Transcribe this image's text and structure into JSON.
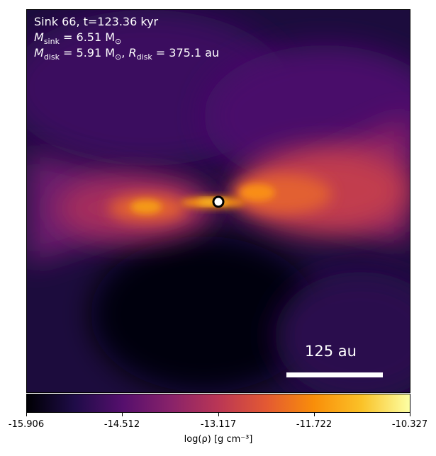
{
  "annotation": {
    "line1": "Sink 66, t=123.36 kyr",
    "m_sink_label": "M",
    "m_sink_sub": "sink",
    "m_sink_value": " = 6.51 M",
    "m_sink_unit_sub": "⊙",
    "m_disk_label": "M",
    "m_disk_sub": "disk",
    "m_disk_value": " = 5.91 M",
    "m_disk_unit_sub": "⊙",
    "r_disk_sep": ", ",
    "r_disk_label": "R",
    "r_disk_sub": "disk",
    "r_disk_value": " = 375.1 au"
  },
  "scalebar": {
    "label": "125 au"
  },
  "colorbar": {
    "ticks": [
      "-15.906",
      "-14.512",
      "-13.117",
      "-11.722",
      "-10.327"
    ],
    "label": "log(ρ) [g cm⁻³]",
    "colormap": "inferno",
    "colors": [
      "#000004",
      "#1f0c48",
      "#550f6d",
      "#88226a",
      "#ba3655",
      "#e35933",
      "#f98e09",
      "#fac228",
      "#fcffa4"
    ]
  },
  "sink_marker": {
    "color_outer": "#ffffff",
    "color_ring": "#000000"
  }
}
